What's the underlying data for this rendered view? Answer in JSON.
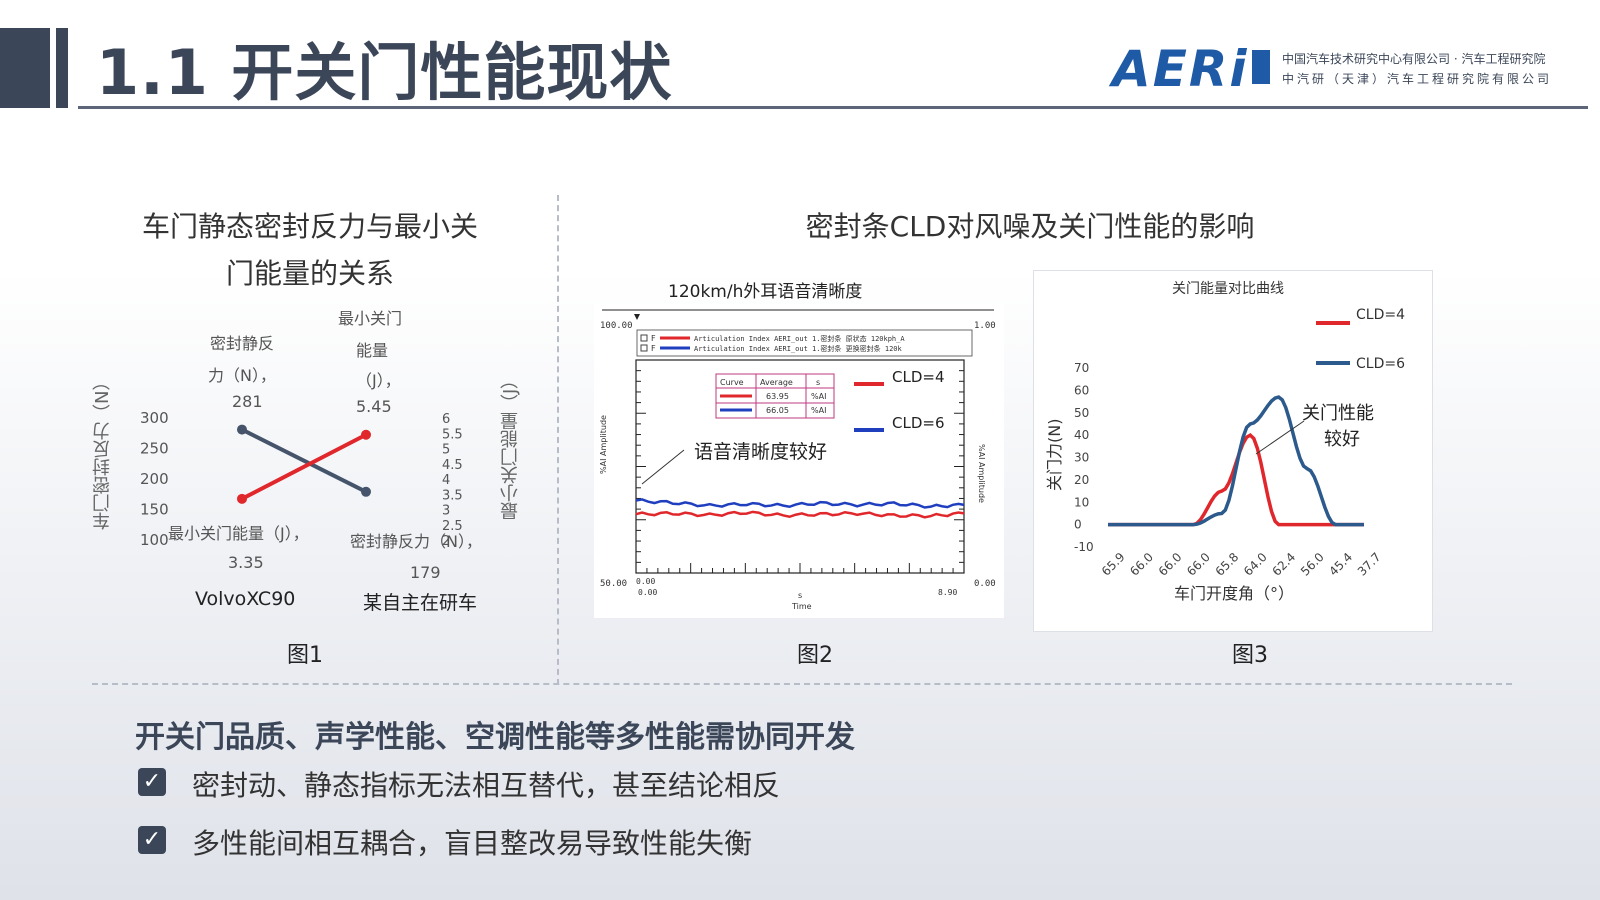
{
  "header": {
    "title": "1.1 开关门性能现状",
    "logo_text": "AERi",
    "org_line1": "中国汽车技术研究中心有限公司 · 汽车工程研究院",
    "org_line2": "中汽研（天津）汽车工程研究院有限公司"
  },
  "fig1": {
    "title_line1": "车门静态密封反力与最小关",
    "title_line2": "门能量的关系",
    "caption": "图1",
    "y_left_label": "车门密封反力（N）",
    "y_right_label": "最小关门能量（J）",
    "label_force_a": "密封静反",
    "label_force_b": "力（N），",
    "label_force_val": "281",
    "label_energy_a": "最小关门",
    "label_energy_b": "能量",
    "label_energy_c": "（J），",
    "label_energy_val": "5.45",
    "label_energy_low": "最小关门能量（J），",
    "label_energy_low_val": "3.35",
    "label_force_low": "密封静反力（N），",
    "label_force_low_val": "179",
    "label_extra": "2.5"
  },
  "fig2_section_title": "密封条CLD对风噪及关门性能的影响",
  "fig2": {
    "title": "120km/h外耳语音清晰度",
    "caption": "图2",
    "annotation": "语音清晰度较好",
    "y_axis": "%AI Amplitude",
    "x_axis": "Time",
    "x_unit": "s",
    "ytop": "100.00",
    "ybot": "50.00",
    "xleft": "0.00",
    "xright": "8.90",
    "legend_line1": "Articulation Index AERI_out 1.密封条 原状态 120kph_A",
    "legend_line2": "Articulation Index AERI_out 1.密封条 更换密封条 120k",
    "table_h1": "Curve",
    "table_h2": "Average",
    "table_h3": "s",
    "table_r1_avg": "63.95",
    "table_r2_avg": "66.05",
    "table_unit": "%AI",
    "ytop_right": "1.00",
    "ybot_right": "0.00",
    "ybot_box": "0.00",
    "xleft_box": "0.00",
    "f_label": "F",
    "cld4": "CLD=4",
    "cld6": "CLD=6"
  },
  "fig3": {
    "title": "关门能量对比曲线",
    "caption": "图3",
    "ylabel": "关门力(N)",
    "xlabel": "车门开度角（°）",
    "annotation_line1": "关门性能",
    "annotation_line2": "较好",
    "cld4": "CLD=4",
    "cld6": "CLD=6",
    "x_ticks": [
      "65.9",
      "66.0",
      "66.0",
      "66.0",
      "65.8",
      "64.0",
      "62.4",
      "56.0",
      "45.4",
      "37.7"
    ],
    "y_ticks": [
      "-10",
      "0",
      "10",
      "20",
      "30",
      "40",
      "50",
      "60",
      "70"
    ]
  },
  "chart_data": [
    {
      "type": "line",
      "title": "车门静态密封反力与最小关门能量的关系",
      "categories": [
        "VolvoXC90",
        "某自主在研车"
      ],
      "ylabel": "车门密封反力（N）",
      "y2label": "最小关门能量（J）",
      "ylim": [
        100,
        300
      ],
      "y2lim": [
        2,
        6
      ],
      "y_ticks": [
        "300",
        "250",
        "200",
        "150",
        "100"
      ],
      "y2_ticks": [
        "6",
        "5.5",
        "5",
        "4.5",
        "4",
        "3.5",
        "3",
        "2.5",
        "2"
      ],
      "series": [
        {
          "name": "密封静反力（N）",
          "axis": "left",
          "values": [
            281,
            179
          ],
          "color": "#46546b"
        },
        {
          "name": "最小关门能量（J）",
          "axis": "right",
          "values": [
            3.35,
            5.45
          ],
          "color": "#e0272b"
        }
      ]
    },
    {
      "type": "line",
      "title": "120km/h外耳语音清晰度",
      "xlabel": "Time",
      "ylabel": "%AI Amplitude",
      "xlim": [
        0,
        8.9
      ],
      "ylim": [
        50,
        100
      ],
      "series": [
        {
          "name": "CLD=4",
          "color": "#e0272b",
          "average": 63.95,
          "values_approx": [
            [
              0,
              63.8
            ],
            [
              1,
              64
            ],
            [
              2,
              63.6
            ],
            [
              3,
              64.2
            ],
            [
              4,
              63.5
            ],
            [
              5,
              63.8
            ],
            [
              6,
              64
            ],
            [
              7,
              63.5
            ],
            [
              8,
              63.4
            ],
            [
              8.9,
              64
            ]
          ]
        },
        {
          "name": "CLD=6",
          "color": "#1f3fbf",
          "average": 66.05,
          "values_approx": [
            [
              0,
              67
            ],
            [
              1,
              66.5
            ],
            [
              2,
              65.8
            ],
            [
              3,
              66.2
            ],
            [
              4,
              65.8
            ],
            [
              5,
              66.4
            ],
            [
              6,
              66
            ],
            [
              7,
              66.3
            ],
            [
              8,
              65.6
            ],
            [
              8.9,
              66
            ]
          ]
        }
      ]
    },
    {
      "type": "line",
      "title": "关门能量对比曲线",
      "xlabel": "车门开度角（°）",
      "ylabel": "关门力(N)",
      "ylim": [
        -10,
        70
      ],
      "categories": [
        "65.9",
        "66.0",
        "66.0",
        "66.0",
        "65.8",
        "64.0",
        "62.4",
        "56.0",
        "45.4",
        "37.7"
      ],
      "series": [
        {
          "name": "CLD=4",
          "color": "#e0272b",
          "values": [
            0,
            0,
            0,
            0,
            15,
            40,
            0,
            0,
            0,
            0
          ]
        },
        {
          "name": "CLD=6",
          "color": "#2c5a8c",
          "values": [
            0,
            0,
            0,
            0,
            5,
            45,
            57,
            25,
            0,
            0
          ]
        }
      ]
    }
  ],
  "bullets": {
    "heading": "开关门品质、声学性能、空调性能等多性能需协同开发",
    "check_glyph": "✓",
    "item1": "密封动、静态指标无法相互替代，甚至结论相反",
    "item2": "多性能间相互耦合，盲目整改易导致性能失衡"
  }
}
